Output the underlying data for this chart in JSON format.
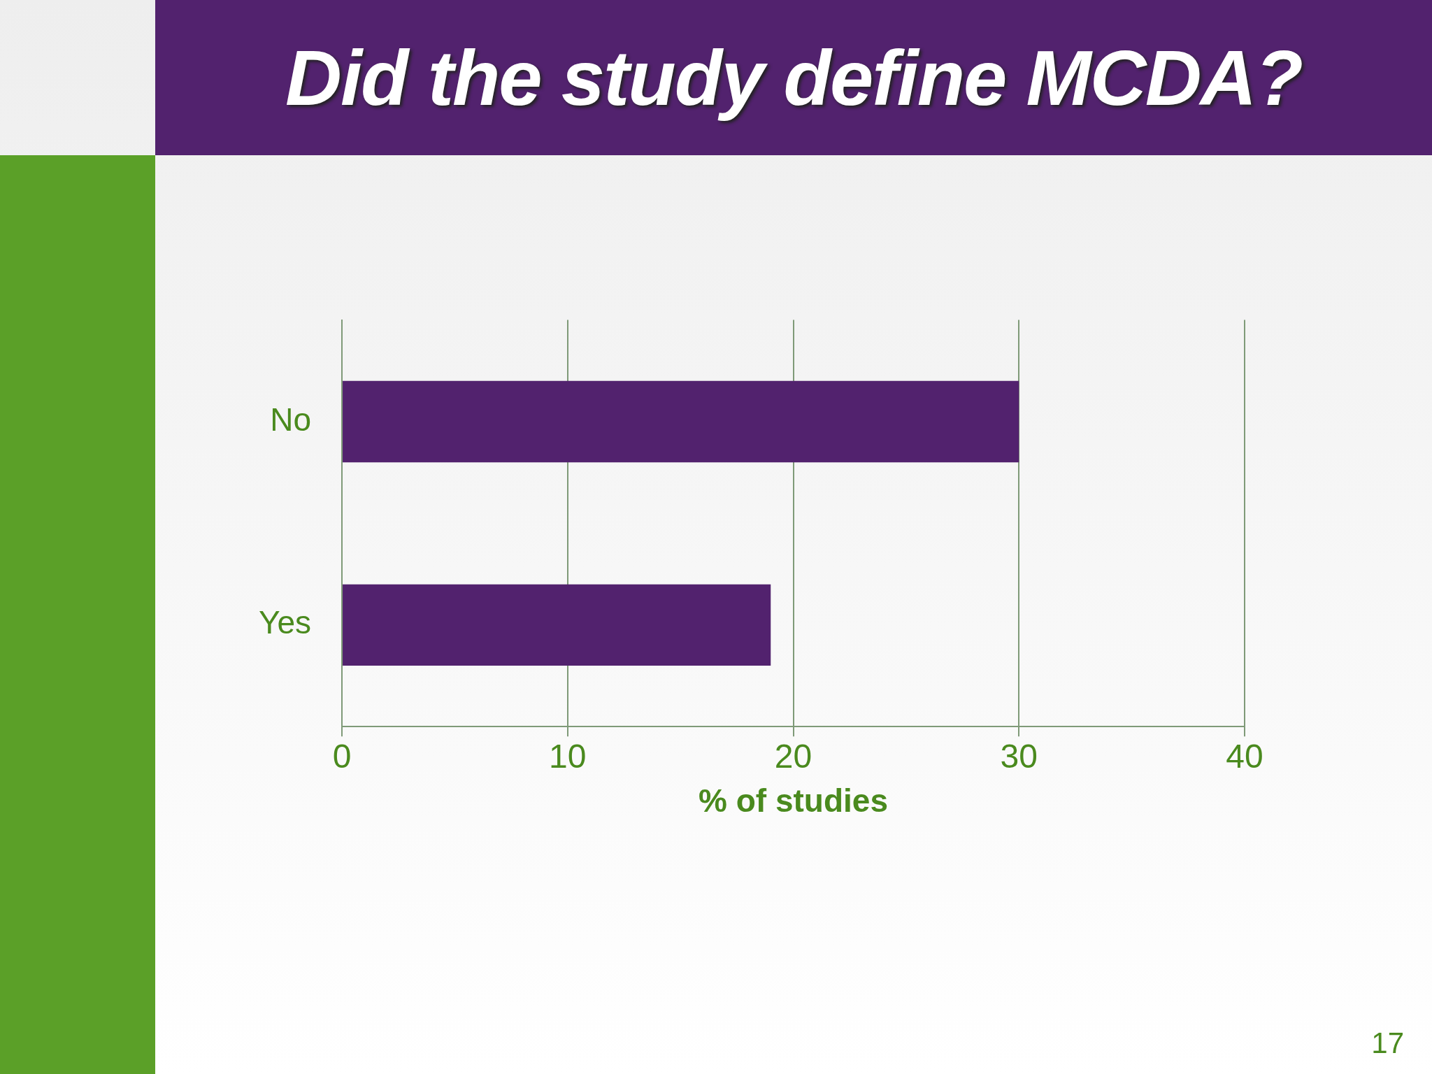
{
  "chart_data": {
    "type": "bar",
    "orientation": "horizontal",
    "title": "Did the study define MCDA?",
    "categories": [
      "No",
      "Yes"
    ],
    "series": [
      {
        "color": "#52226e",
        "values": [
          30,
          19
        ]
      }
    ],
    "xlabel": "% of studies",
    "xlim": [
      0,
      40
    ],
    "xticks": [
      0,
      10,
      20,
      30,
      40
    ],
    "grid": "x",
    "legend": false,
    "annotations": [
      "17"
    ]
  }
}
